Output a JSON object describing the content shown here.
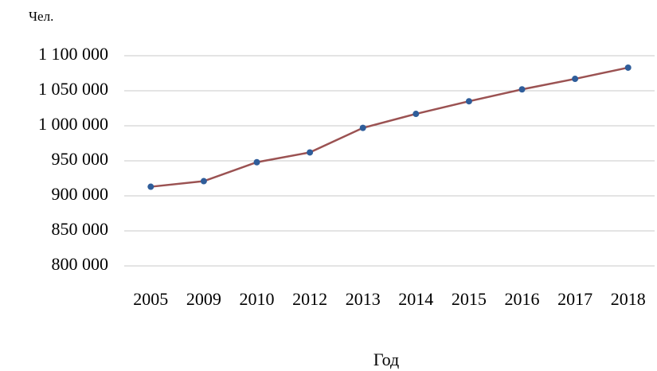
{
  "chart_data": {
    "type": "line",
    "y_label": "Чел.",
    "x_label": "Год",
    "categories": [
      "2005",
      "2009",
      "2010",
      "2012",
      "2013",
      "2014",
      "2015",
      "2016",
      "2017",
      "2018"
    ],
    "series": [
      {
        "name": "Чел.",
        "line_color": "#9b5252",
        "marker_color": "#2f5d9a",
        "values": [
          913000,
          921000,
          948000,
          962000,
          997000,
          1017000,
          1035000,
          1052000,
          1067000,
          1083000
        ]
      }
    ],
    "ylim": [
      800000,
      1100000
    ],
    "yticks": [
      {
        "value": 800000,
        "label": "800 000"
      },
      {
        "value": 850000,
        "label": "850 000"
      },
      {
        "value": 900000,
        "label": "900 000"
      },
      {
        "value": 950000,
        "label": "950 000"
      },
      {
        "value": 1000000,
        "label": "1 000 000"
      },
      {
        "value": 1050000,
        "label": "1 050 000"
      },
      {
        "value": 1100000,
        "label": "1 100 000"
      }
    ],
    "grid": true
  }
}
